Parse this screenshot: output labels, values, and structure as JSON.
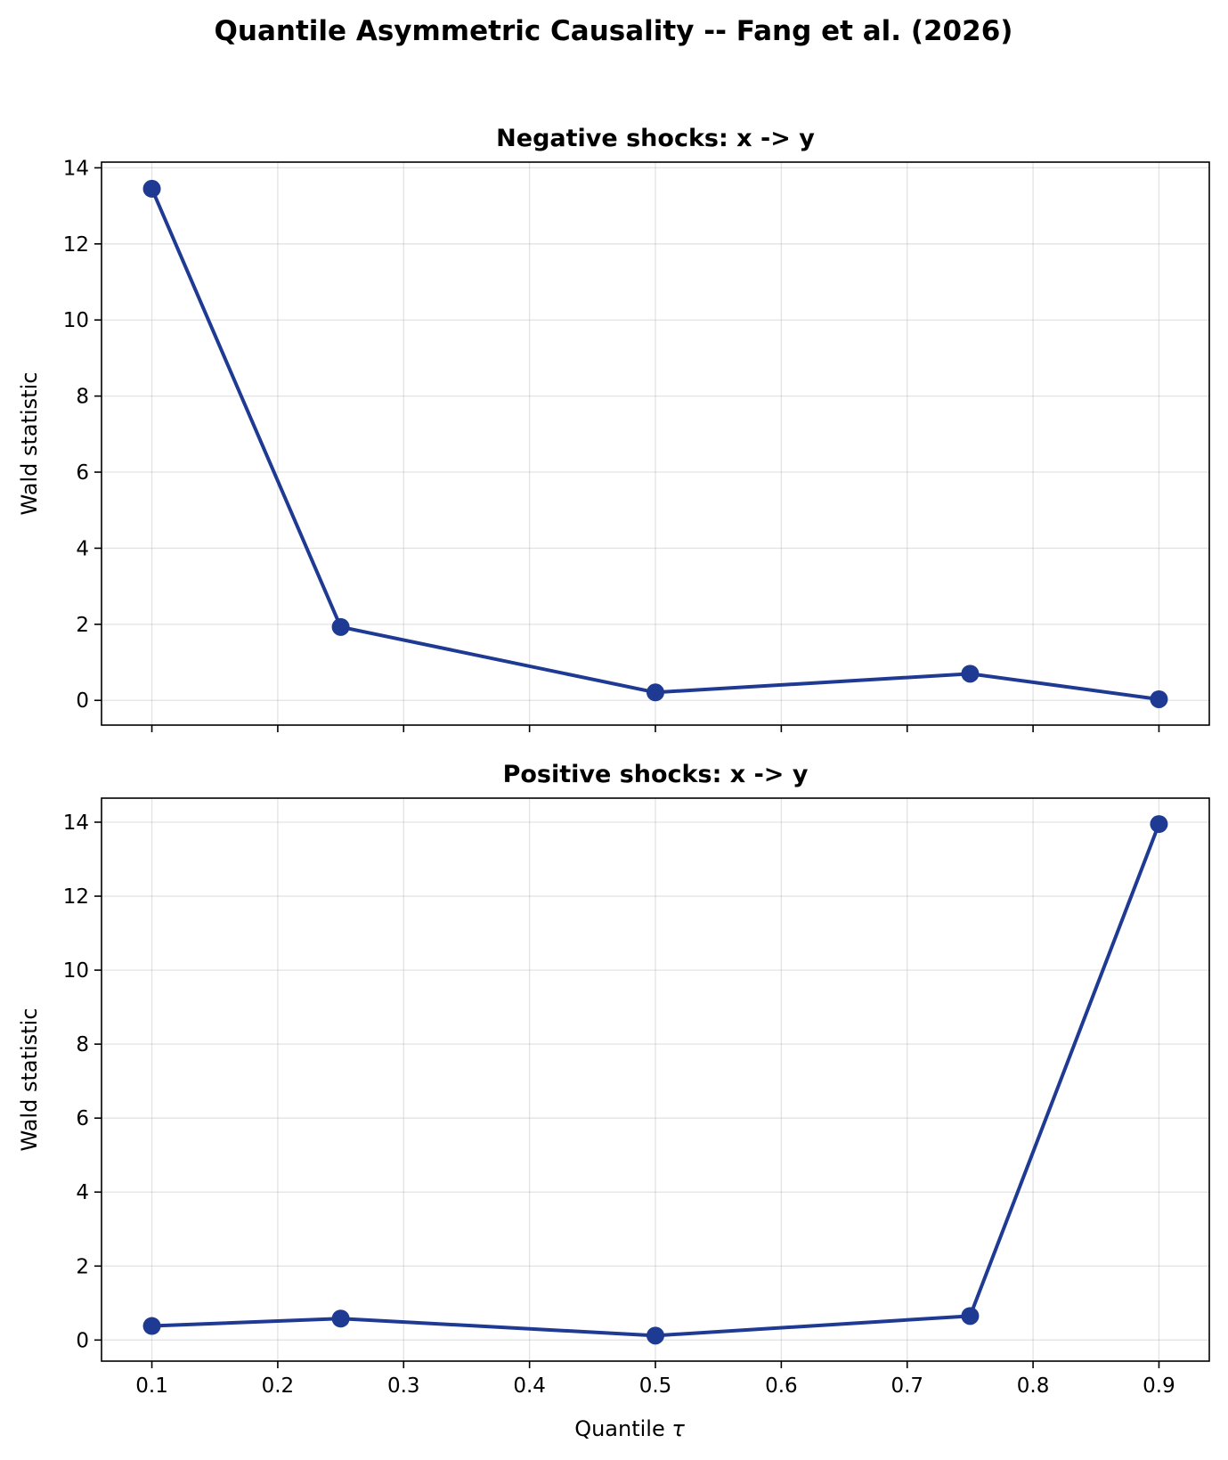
{
  "figure": {
    "title": "Quantile Asymmetric Causality -- Fang et al. (2026)",
    "xlabel": "Quantile τ",
    "xlabel_main": "Quantile ",
    "xlabel_symbol": "τ"
  },
  "chart_data": [
    {
      "type": "line",
      "title": "Negative shocks: x -> y",
      "xlabel": "",
      "ylabel": "Wald statistic",
      "x": [
        0.1,
        0.25,
        0.5,
        0.75,
        0.9
      ],
      "series": [
        {
          "values": [
            13.45,
            1.93,
            0.21,
            0.7,
            0.03
          ],
          "color": "#1f3a93",
          "marker": "circle"
        }
      ],
      "xlim": [
        0.06,
        0.94
      ],
      "ylim": [
        -0.65,
        14.15
      ],
      "xticks": [
        0.1,
        0.2,
        0.3,
        0.4,
        0.5,
        0.6,
        0.7,
        0.8,
        0.9
      ],
      "yticks": [
        0,
        2,
        4,
        6,
        8,
        10,
        12,
        14
      ],
      "show_xtick_labels": false,
      "grid": true
    },
    {
      "type": "line",
      "title": "Positive shocks: x -> y",
      "xlabel": "Quantile τ",
      "ylabel": "Wald statistic",
      "x": [
        0.1,
        0.25,
        0.5,
        0.75,
        0.9
      ],
      "series": [
        {
          "values": [
            0.38,
            0.58,
            0.12,
            0.65,
            13.95
          ],
          "color": "#1f3a93",
          "marker": "circle"
        }
      ],
      "xlim": [
        0.06,
        0.94
      ],
      "ylim": [
        -0.57,
        14.65
      ],
      "xticks": [
        0.1,
        0.2,
        0.3,
        0.4,
        0.5,
        0.6,
        0.7,
        0.8,
        0.9
      ],
      "yticks": [
        0,
        2,
        4,
        6,
        8,
        10,
        12,
        14
      ],
      "show_xtick_labels": true,
      "grid": true
    }
  ]
}
